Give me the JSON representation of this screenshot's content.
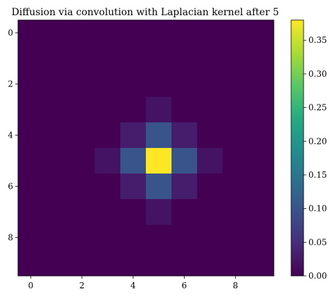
{
  "chart_data": {
    "type": "heatmap",
    "title": "Diffusion via convolution with Laplacian kernel after 5",
    "xlabel": "",
    "ylabel": "",
    "colormap": "viridis",
    "rows": 10,
    "cols": 10,
    "values": [
      [
        0,
        0,
        0,
        0,
        0,
        0,
        0,
        0,
        0,
        0
      ],
      [
        0,
        0,
        0,
        0,
        0,
        0,
        0,
        0,
        0,
        0
      ],
      [
        0,
        0,
        0,
        0,
        0,
        0,
        0,
        0,
        0,
        0
      ],
      [
        0,
        0,
        0,
        0,
        0,
        0.02,
        0,
        0,
        0,
        0
      ],
      [
        0,
        0,
        0,
        0,
        0.03,
        0.1,
        0.03,
        0,
        0,
        0
      ],
      [
        0,
        0,
        0,
        0.02,
        0.1,
        0.38,
        0.1,
        0.02,
        0,
        0
      ],
      [
        0,
        0,
        0,
        0,
        0.03,
        0.1,
        0.03,
        0,
        0,
        0
      ],
      [
        0,
        0,
        0,
        0,
        0,
        0.02,
        0,
        0,
        0,
        0
      ],
      [
        0,
        0,
        0,
        0,
        0,
        0,
        0,
        0,
        0,
        0
      ],
      [
        0,
        0,
        0,
        0,
        0,
        0,
        0,
        0,
        0,
        0
      ]
    ],
    "x_ticks": [
      0,
      2,
      4,
      6,
      8
    ],
    "y_ticks": [
      0,
      2,
      4,
      6,
      8
    ],
    "colorbar": {
      "range": [
        0,
        0.38
      ],
      "ticks": [
        0.0,
        0.05,
        0.1,
        0.15,
        0.2,
        0.25,
        0.3,
        0.35
      ],
      "tick_labels": [
        "0.00",
        "0.05",
        "0.10",
        "0.15",
        "0.20",
        "0.25",
        "0.30",
        "0.35"
      ]
    },
    "grid": false,
    "legend": "none"
  }
}
